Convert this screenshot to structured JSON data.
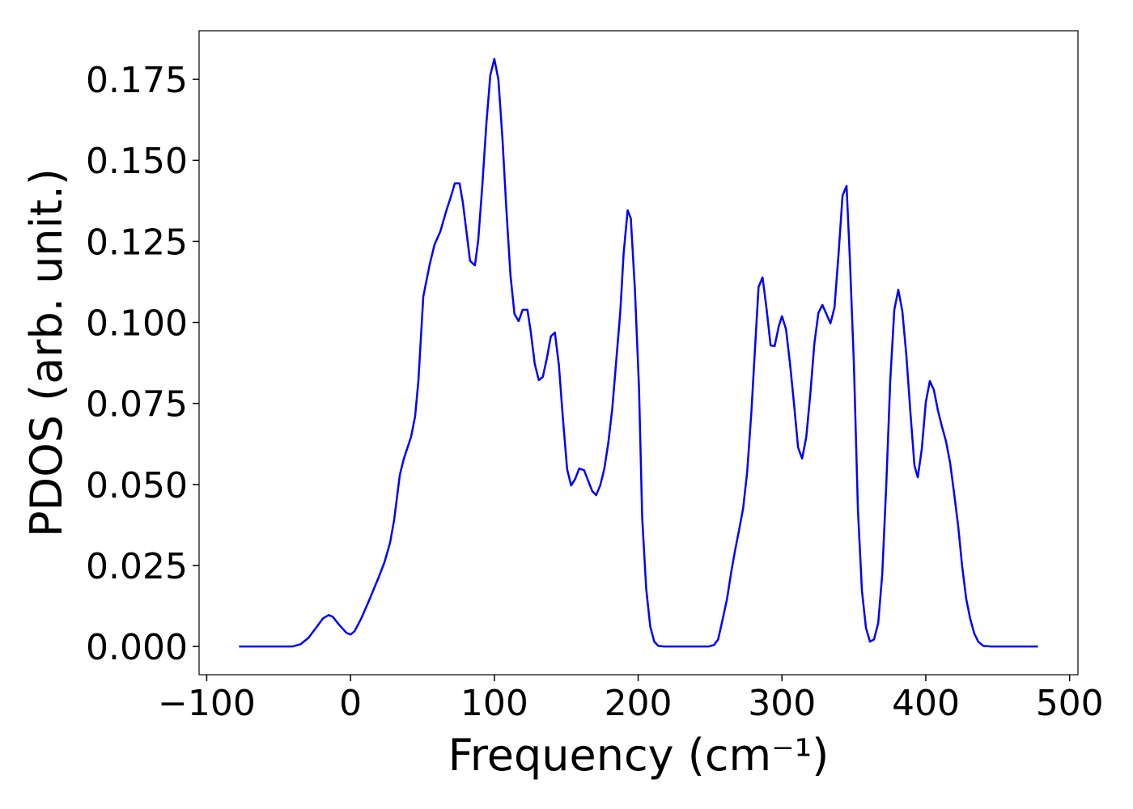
{
  "chart_data": {
    "type": "line",
    "xlabel": "Frequency (cm⁻¹)",
    "ylabel": "PDOS (arb. unit.)",
    "xlim": [
      -105.3,
      505.8
    ],
    "ylim": [
      -0.0087,
      0.19
    ],
    "xticks": [
      {
        "value": -100,
        "label": "−100"
      },
      0,
      100,
      200,
      300,
      400,
      500
    ],
    "yticks": [
      {
        "value": 0,
        "label": "0.000"
      },
      {
        "value": 0.025,
        "label": "0.025"
      },
      {
        "value": 0.05,
        "label": "0.050"
      },
      {
        "value": 0.075,
        "label": "0.075"
      },
      {
        "value": 0.1,
        "label": "0.100"
      },
      {
        "value": 0.125,
        "label": "0.125"
      },
      {
        "value": 0.15,
        "label": "0.150"
      },
      {
        "value": 0.175,
        "label": "0.175"
      }
    ],
    "grid": false,
    "series": [
      {
        "color": "#0000ff",
        "x": [
          -77.5,
          -40.4,
          -34.8,
          -29.2,
          -23.6,
          -19.1,
          -15.2,
          -12.4,
          -7.9,
          -2.8,
          0,
          2.8,
          7.3,
          12.9,
          19.7,
          23.6,
          27.5,
          30.3,
          34.3,
          37.1,
          42.1,
          44.9,
          47.2,
          50.6,
          55.1,
          58.4,
          62.4,
          66.3,
          70.2,
          72.5,
          75.8,
          78.1,
          80.9,
          83.1,
          86.5,
          88.8,
          91.6,
          94.4,
          97.2,
          100,
          102.8,
          105.6,
          108.4,
          111.2,
          114,
          116.9,
          119.7,
          123,
          125.3,
          128.1,
          130.9,
          133.7,
          136.5,
          139.3,
          142.1,
          144.9,
          147.8,
          150.6,
          153.4,
          156.2,
          159,
          162.4,
          165.2,
          168,
          170.8,
          173.6,
          176.4,
          179.2,
          182,
          184.8,
          187.6,
          189.9,
          192.7,
          194.9,
          197.8,
          200.6,
          202.8,
          205.6,
          208.4,
          211.2,
          214,
          218,
          248.9,
          252.8,
          255.6,
          258.4,
          261.8,
          264.6,
          267.4,
          270.2,
          273,
          275.8,
          278.7,
          281.5,
          283.7,
          286.5,
          289.3,
          292.1,
          294.9,
          297.8,
          300,
          302.8,
          305.6,
          308.4,
          311.2,
          314,
          316.9,
          319.7,
          322.5,
          325.3,
          328.1,
          330.9,
          333.7,
          336.5,
          339.3,
          342.1,
          344.9,
          347.2,
          350,
          352.8,
          355.6,
          358.4,
          361.2,
          364,
          366.9,
          369.7,
          372.5,
          375.3,
          378.1,
          380.9,
          383.7,
          386.5,
          389.3,
          392.1,
          394.4,
          397.2,
          400,
          402.8,
          405.6,
          408.4,
          411.2,
          414,
          416.9,
          419.7,
          422.5,
          425.3,
          428.1,
          430.9,
          433.7,
          436.5,
          439.9,
          445.5,
          478
        ],
        "values": [
          0,
          0,
          0.0007,
          0.0027,
          0.006,
          0.0087,
          0.0097,
          0.0092,
          0.0067,
          0.0042,
          0.0037,
          0.0047,
          0.0085,
          0.0142,
          0.0215,
          0.026,
          0.032,
          0.039,
          0.053,
          0.058,
          0.0647,
          0.071,
          0.082,
          0.108,
          0.118,
          0.124,
          0.128,
          0.134,
          0.1394,
          0.1429,
          0.1429,
          0.137,
          0.127,
          0.119,
          0.1176,
          0.1254,
          0.142,
          0.161,
          0.1763,
          0.1813,
          0.175,
          0.157,
          0.1346,
          0.1146,
          0.1026,
          0.1004,
          0.1039,
          0.1039,
          0.0972,
          0.0872,
          0.0822,
          0.0832,
          0.0889,
          0.0957,
          0.0969,
          0.0867,
          0.0697,
          0.0547,
          0.0497,
          0.0517,
          0.0549,
          0.0544,
          0.0512,
          0.048,
          0.0467,
          0.0497,
          0.0547,
          0.0627,
          0.0734,
          0.0884,
          0.1034,
          0.1214,
          0.1346,
          0.1321,
          0.1096,
          0.0797,
          0.0397,
          0.0177,
          0.0062,
          0.0015,
          0.0002,
          0,
          0,
          0.0005,
          0.0022,
          0.0077,
          0.0147,
          0.0227,
          0.0297,
          0.036,
          0.0427,
          0.0539,
          0.0722,
          0.0939,
          0.1109,
          0.1139,
          0.1041,
          0.0929,
          0.0927,
          0.0989,
          0.1019,
          0.0979,
          0.0872,
          0.0747,
          0.0614,
          0.058,
          0.0647,
          0.0779,
          0.0934,
          0.1029,
          0.1054,
          0.1026,
          0.0997,
          0.1046,
          0.1209,
          0.1391,
          0.1421,
          0.1196,
          0.0872,
          0.0422,
          0.0172,
          0.0057,
          0.0015,
          0.0022,
          0.0072,
          0.0222,
          0.0497,
          0.0822,
          0.1039,
          0.1101,
          0.1034,
          0.0897,
          0.0722,
          0.0559,
          0.0522,
          0.0609,
          0.0754,
          0.0819,
          0.0792,
          0.0729,
          0.0679,
          0.0634,
          0.0567,
          0.0472,
          0.0372,
          0.0247,
          0.0147,
          0.0085,
          0.004,
          0.0015,
          0.0002,
          0,
          0
        ]
      }
    ]
  }
}
